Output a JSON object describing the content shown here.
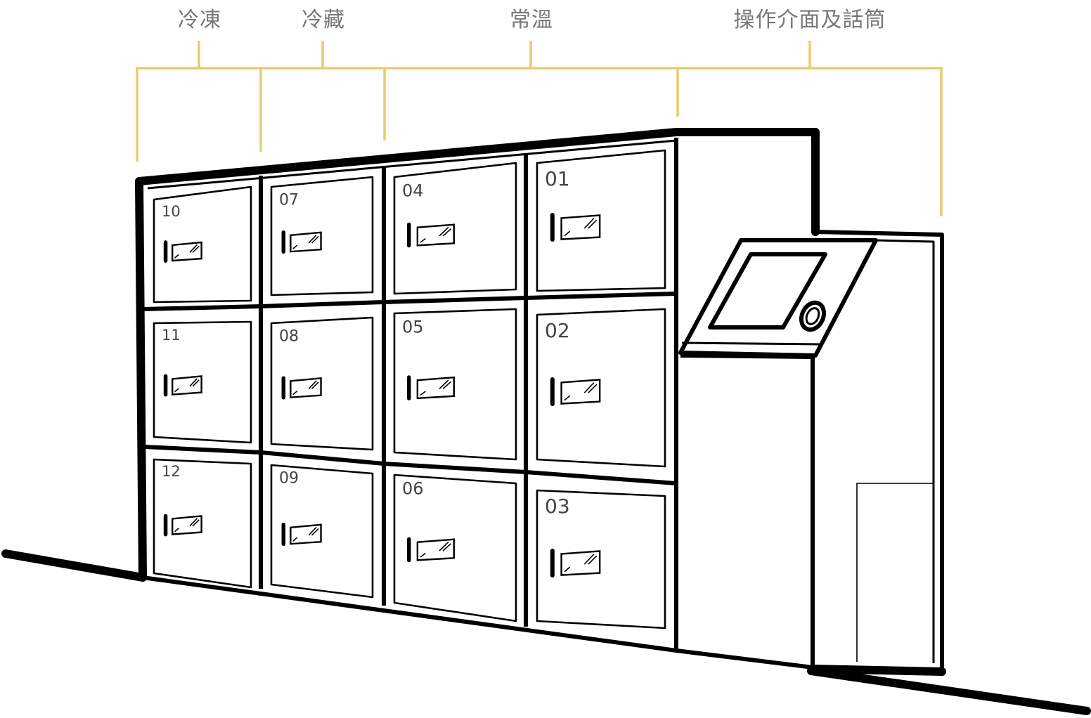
{
  "zones": [
    {
      "id": "freeze",
      "label": "冷凍"
    },
    {
      "id": "chill",
      "label": "冷藏"
    },
    {
      "id": "ambient",
      "label": "常溫"
    },
    {
      "id": "console",
      "label": "操作介面及話筒"
    }
  ],
  "lockers": [
    "01",
    "02",
    "03",
    "04",
    "05",
    "06",
    "07",
    "08",
    "09",
    "10",
    "11",
    "12"
  ],
  "colors": {
    "bracket": "#EACB6E",
    "label_text": "#777777",
    "outline": "#000000",
    "background": "#FFFFFF"
  },
  "icons": {
    "door_handle": "handle-bar-icon",
    "door_window": "glass-window-icon",
    "screen": "touchscreen-icon",
    "handset": "intercom-button-icon"
  }
}
